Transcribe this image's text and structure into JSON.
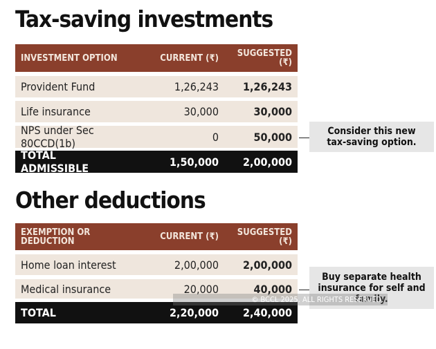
{
  "sections": [
    {
      "title": "Tax-saving investments",
      "header": [
        "INVESTMENT OPTION",
        "CURRENT (₹)",
        "SUGGESTED (₹)"
      ],
      "rows": [
        [
          "Provident Fund",
          "1,26,243",
          "1,26,243"
        ],
        [
          "Life insurance",
          "30,000",
          "30,000"
        ],
        [
          "NPS under Sec 80CCD(1b)",
          "0",
          "50,000"
        ]
      ],
      "total": [
        "TOTAL ADMISSIBLE",
        "1,50,000",
        "2,00,000"
      ],
      "note": "Consider this new tax-saving option."
    },
    {
      "title": "Other deductions",
      "header": [
        "EXEMPTION OR DEDUCTION",
        "CURRENT (₹)",
        "SUGGESTED (₹)"
      ],
      "rows": [
        [
          "Home loan interest",
          "2,00,000",
          "2,00,000"
        ],
        [
          "Medical insurance",
          "20,000",
          "40,000"
        ]
      ],
      "total": [
        "TOTAL",
        "2,20,000",
        "2,40,000"
      ],
      "note": "Buy separate health insurance for self and family."
    }
  ],
  "watermark": "© BCCL 2025. ALL RIGHTS RESERVED."
}
